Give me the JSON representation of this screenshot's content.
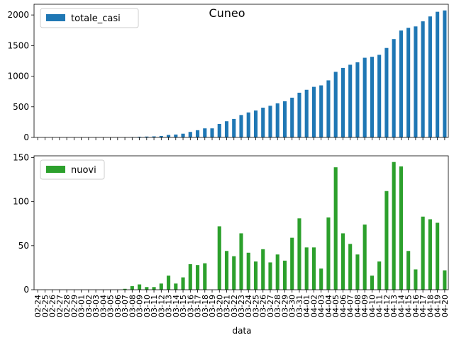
{
  "chart_data": {
    "type": "bar",
    "title": "Cuneo",
    "xlabel": "data",
    "categories": [
      "02-24",
      "02-25",
      "02-26",
      "02-27",
      "02-28",
      "02-29",
      "03-01",
      "03-02",
      "03-03",
      "03-04",
      "03-05",
      "03-06",
      "03-07",
      "03-08",
      "03-09",
      "03-10",
      "03-11",
      "03-12",
      "03-13",
      "03-14",
      "03-15",
      "03-16",
      "03-17",
      "03-18",
      "03-19",
      "03-20",
      "03-21",
      "03-22",
      "03-23",
      "03-24",
      "03-25",
      "03-26",
      "03-27",
      "03-28",
      "03-29",
      "03-30",
      "03-31",
      "04-01",
      "04-02",
      "04-03",
      "04-04",
      "04-05",
      "04-06",
      "04-07",
      "04-08",
      "04-09",
      "04-10",
      "04-11",
      "04-12",
      "04-13",
      "04-14",
      "04-15",
      "04-16",
      "04-17",
      "04-18",
      "04-19",
      "04-20"
    ],
    "panels": [
      {
        "series": [
          {
            "name": "totale_casi",
            "color": "#1f77b4",
            "values": [
              0,
              0,
              0,
              0,
              0,
              0,
              0,
              0,
              0,
              0,
              0,
              0,
              1,
              5,
              11,
              14,
              17,
              24,
              40,
              47,
              61,
              90,
              118,
              148,
              148,
              220,
              264,
              302,
              366,
              408,
              440,
              486,
              517,
              557,
              590,
              649,
              730,
              778,
              826,
              850,
              932,
              1071,
              1135,
              1187,
              1227,
              1301,
              1317,
              1349,
              1461,
              1606,
              1746,
              1790,
              1813,
              1896,
              1976,
              2052,
              2074
            ]
          }
        ],
        "ylim": [
          0,
          2175
        ],
        "yticks": [
          0,
          500,
          1000,
          1500,
          2000
        ],
        "legend": "top-left"
      },
      {
        "series": [
          {
            "name": "nuovi",
            "color": "#2ca02c",
            "values": [
              0,
              0,
              0,
              0,
              0,
              0,
              0,
              0,
              0,
              0,
              0,
              0,
              1,
              4,
              6,
              3,
              3,
              7,
              16,
              7,
              14,
              29,
              28,
              30,
              0,
              72,
              44,
              38,
              64,
              42,
              32,
              46,
              31,
              40,
              33,
              59,
              81,
              48,
              48,
              24,
              82,
              139,
              64,
              52,
              40,
              74,
              16,
              32,
              112,
              145,
              140,
              44,
              23,
              83,
              80,
              76,
              22
            ]
          }
        ],
        "ylim": [
          0,
          152
        ],
        "yticks": [
          0,
          50,
          100,
          150
        ],
        "legend": "top-left"
      }
    ]
  }
}
